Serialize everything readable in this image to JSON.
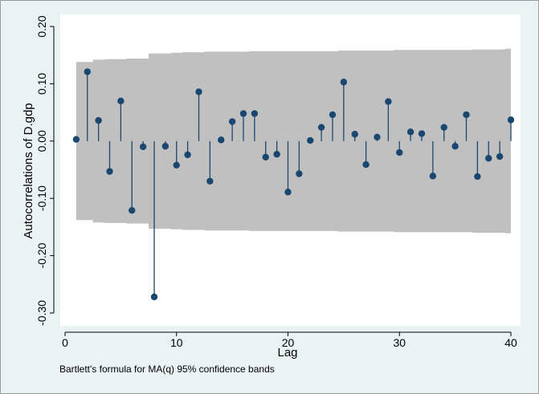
{
  "chart_data": {
    "type": "stem",
    "xlabel": "Lag",
    "ylabel": "Autocorrelations of D.gdp",
    "note": "Bartlett's formula for MA(q) 95% confidence bands",
    "xlim": [
      0,
      40
    ],
    "ylim": [
      -0.3,
      0.2
    ],
    "xticks": [
      0,
      10,
      20,
      30,
      40
    ],
    "xtick_labels": [
      "0",
      "10",
      "20",
      "30",
      "40"
    ],
    "yticks": [
      -0.3,
      -0.2,
      -0.1,
      0,
      0.1,
      0.2
    ],
    "ytick_labels": [
      "-0.30",
      "-0.20",
      "-0.10",
      "0.00",
      "0.10",
      "0.20"
    ],
    "grid": false,
    "lags": [
      1,
      2,
      3,
      4,
      5,
      6,
      7,
      8,
      9,
      10,
      11,
      12,
      13,
      14,
      15,
      16,
      17,
      18,
      19,
      20,
      21,
      22,
      23,
      24,
      25,
      26,
      27,
      28,
      29,
      30,
      31,
      32,
      33,
      34,
      35,
      36,
      37,
      38,
      39,
      40
    ],
    "values": [
      0.003,
      0.121,
      0.036,
      -0.053,
      0.07,
      -0.121,
      -0.01,
      -0.272,
      -0.009,
      -0.042,
      -0.024,
      0.086,
      -0.07,
      0.002,
      0.034,
      0.048,
      0.048,
      -0.028,
      -0.023,
      -0.089,
      -0.057,
      0.001,
      0.024,
      0.046,
      0.103,
      0.012,
      -0.041,
      0.007,
      0.069,
      -0.02,
      0.016,
      0.013,
      -0.061,
      0.024,
      -0.009,
      0.046,
      -0.062,
      -0.03,
      -0.027,
      0.037
    ],
    "confidence_band": {
      "upper": [
        0.138,
        0.138,
        0.142,
        0.143,
        0.143,
        0.144,
        0.144,
        0.153,
        0.153,
        0.154,
        0.155,
        0.155,
        0.156,
        0.156,
        0.156,
        0.156,
        0.157,
        0.157,
        0.157,
        0.157,
        0.157,
        0.157,
        0.157,
        0.157,
        0.158,
        0.158,
        0.158,
        0.158,
        0.158,
        0.159,
        0.159,
        0.159,
        0.159,
        0.159,
        0.159,
        0.159,
        0.16,
        0.16,
        0.16,
        0.161
      ],
      "lower": [
        -0.138,
        -0.138,
        -0.142,
        -0.143,
        -0.143,
        -0.144,
        -0.144,
        -0.153,
        -0.153,
        -0.154,
        -0.155,
        -0.155,
        -0.156,
        -0.156,
        -0.156,
        -0.156,
        -0.157,
        -0.157,
        -0.157,
        -0.157,
        -0.157,
        -0.157,
        -0.157,
        -0.157,
        -0.158,
        -0.158,
        -0.158,
        -0.158,
        -0.158,
        -0.159,
        -0.159,
        -0.159,
        -0.159,
        -0.159,
        -0.159,
        -0.159,
        -0.16,
        -0.16,
        -0.16,
        -0.161
      ],
      "color": "#c0c0c0"
    },
    "marker_color": "#1a476f",
    "stem_color": "#1a476f",
    "plot_background": "#ffffff",
    "outer_background": "#eaf2f3"
  }
}
